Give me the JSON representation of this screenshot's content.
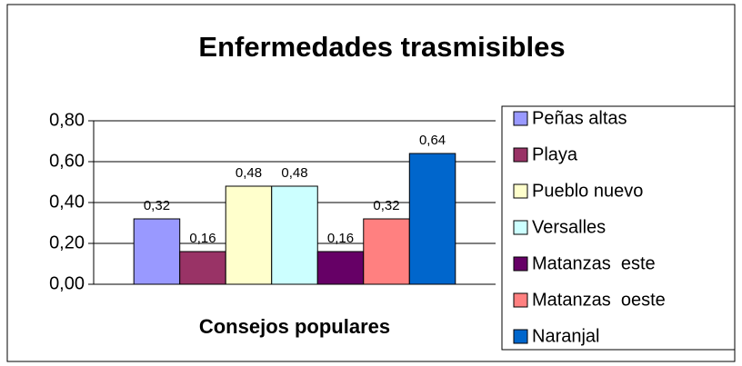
{
  "chart_data": {
    "type": "bar",
    "title": "Enfermedades trasmisibles",
    "x_label": "Consejos populares",
    "categories": [
      null
    ],
    "series": [
      {
        "name": "Peñas altas",
        "color": "#9999ff",
        "values": [
          0.32
        ],
        "value_labels": [
          "0,32"
        ]
      },
      {
        "name": "Playa",
        "color": "#993366",
        "values": [
          0.16
        ],
        "value_labels": [
          "0,16"
        ]
      },
      {
        "name": "Pueblo nuevo",
        "color": "#ffffcc",
        "values": [
          0.48
        ],
        "value_labels": [
          "0,48"
        ]
      },
      {
        "name": "Versalles",
        "color": "#ccffff",
        "values": [
          0.48
        ],
        "value_labels": [
          "0,48"
        ]
      },
      {
        "name": "Matanzas  este",
        "color": "#660066",
        "values": [
          0.16
        ],
        "value_labels": [
          "0,16"
        ]
      },
      {
        "name": "Matanzas  oeste",
        "color": "#ff8080",
        "values": [
          0.32
        ],
        "value_labels": [
          "0,32"
        ]
      },
      {
        "name": "Naranjal",
        "color": "#0066cc",
        "values": [
          0.64
        ],
        "value_labels": [
          "0,64"
        ]
      }
    ],
    "ylim": [
      0,
      0.8
    ],
    "yticks": [
      {
        "value": 0,
        "label": "0,00"
      },
      {
        "value": 0.2,
        "label": "0,20"
      },
      {
        "value": 0.4,
        "label": "0,40"
      },
      {
        "value": 0.6,
        "label": "0,60"
      },
      {
        "value": 0.8,
        "label": "0,80"
      }
    ],
    "grid": true,
    "legend": "right"
  }
}
